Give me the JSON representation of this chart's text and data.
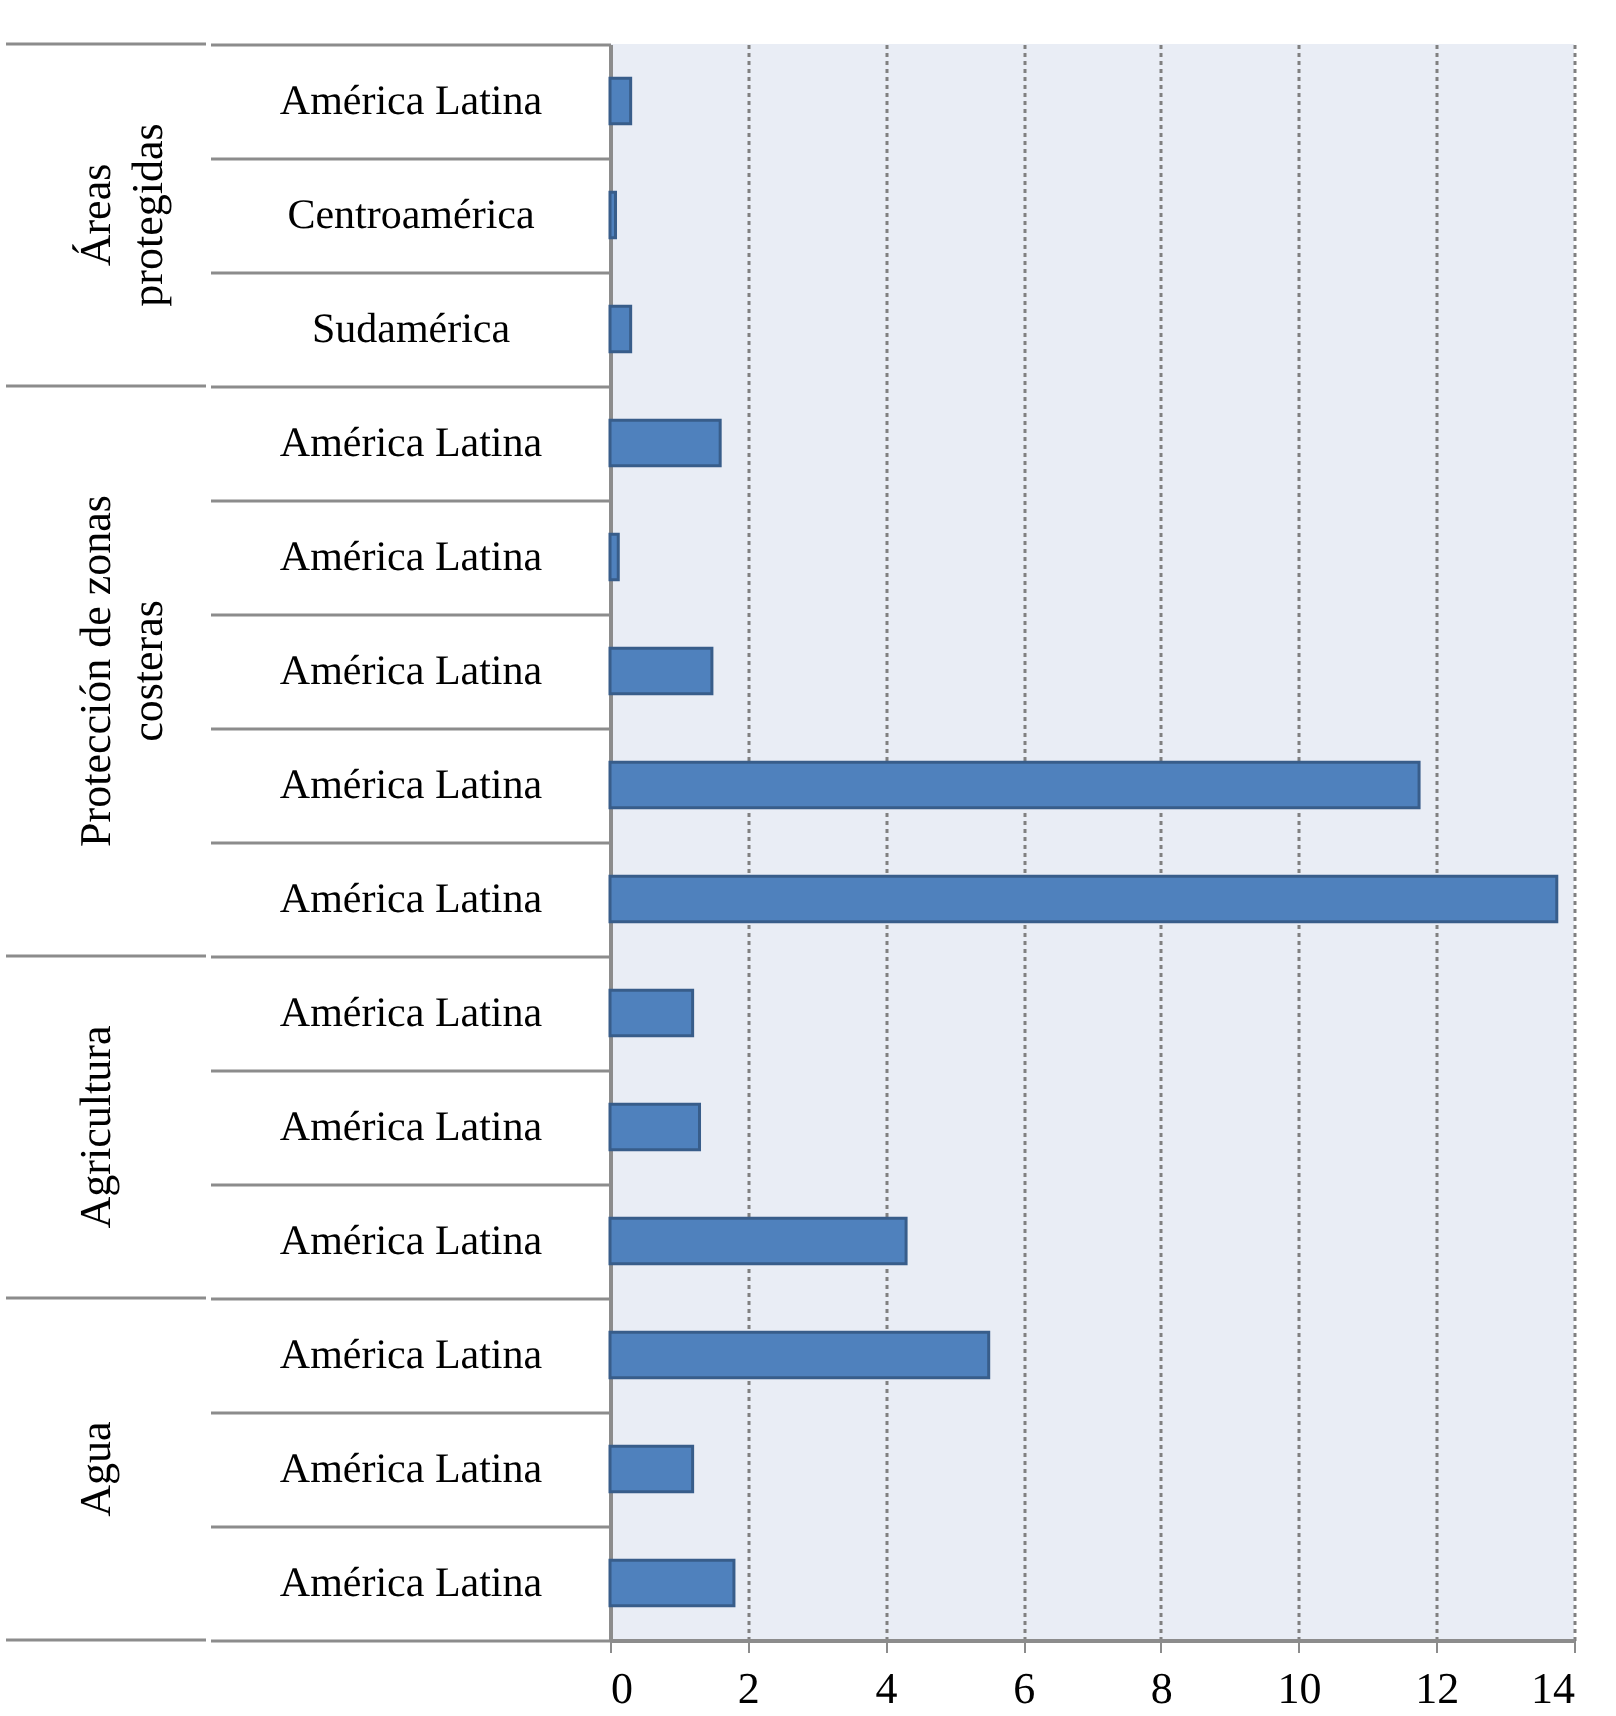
{
  "chart_data": {
    "type": "bar",
    "orientation": "horizontal",
    "categories": [
      "América Latina",
      "Centroamérica",
      "Sudamérica",
      "América Latina",
      "América Latina",
      "América Latina",
      "América Latina",
      "América Latina",
      "América Latina",
      "América Latina",
      "América Latina",
      "América Latina",
      "América Latina",
      "América Latina"
    ],
    "values": [
      0.3,
      0.08,
      0.3,
      1.6,
      0.12,
      1.48,
      11.75,
      13.75,
      1.2,
      1.3,
      4.3,
      5.5,
      1.2,
      1.8
    ],
    "color": "#4f81bd",
    "xlim": [
      0,
      14
    ],
    "xticks": [
      0,
      2,
      4,
      6,
      8,
      10,
      12,
      14
    ],
    "grid": "x",
    "annotations": [
      "Áreas protegidas",
      "Protección de zonas costeras",
      "Agricultura",
      "Agua"
    ]
  }
}
